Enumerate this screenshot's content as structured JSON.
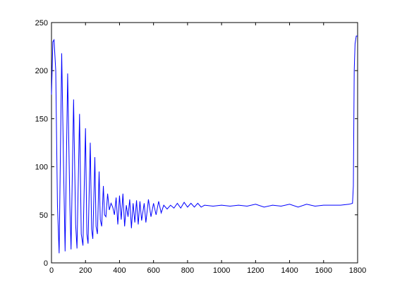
{
  "chart_data": {
    "type": "line",
    "x": [
      0,
      8,
      15,
      25,
      35,
      45,
      60,
      72,
      80,
      95,
      108,
      115,
      130,
      142,
      150,
      165,
      175,
      185,
      200,
      208,
      215,
      228,
      236,
      243,
      255,
      262,
      270,
      280,
      287,
      295,
      305,
      312,
      320,
      330,
      340,
      350,
      360,
      370,
      380,
      390,
      400,
      410,
      420,
      430,
      440,
      450,
      460,
      470,
      480,
      490,
      500,
      510,
      520,
      530,
      545,
      555,
      570,
      585,
      600,
      615,
      630,
      645,
      660,
      680,
      700,
      720,
      740,
      760,
      780,
      800,
      820,
      840,
      860,
      880,
      900,
      950,
      1000,
      1050,
      1100,
      1150,
      1200,
      1250,
      1300,
      1350,
      1400,
      1450,
      1500,
      1550,
      1600,
      1650,
      1700,
      1750,
      1770,
      1775,
      1780,
      1785,
      1792,
      1800
    ],
    "values": [
      175,
      230,
      232,
      200,
      60,
      10,
      218,
      90,
      12,
      197,
      60,
      14,
      170,
      40,
      15,
      155,
      30,
      18,
      140,
      30,
      20,
      125,
      35,
      25,
      110,
      38,
      30,
      95,
      45,
      38,
      80,
      50,
      48,
      72,
      55,
      62,
      58,
      50,
      68,
      40,
      70,
      45,
      72,
      38,
      60,
      48,
      66,
      36,
      62,
      42,
      65,
      40,
      64,
      44,
      62,
      42,
      66,
      48,
      62,
      50,
      64,
      52,
      60,
      56,
      60,
      57,
      62,
      57,
      63,
      58,
      62,
      58,
      62,
      58,
      60,
      59,
      60,
      59,
      60,
      59,
      61,
      58,
      60,
      59,
      61,
      58,
      61,
      59,
      60,
      60,
      60,
      61,
      62,
      80,
      200,
      228,
      236,
      236
    ],
    "color": "#0000ff",
    "xlim": [
      0,
      1800
    ],
    "ylim": [
      0,
      250
    ],
    "xticks": [
      0,
      200,
      400,
      600,
      800,
      1000,
      1200,
      1400,
      1600,
      1800
    ],
    "yticks": [
      0,
      50,
      100,
      150,
      200,
      250
    ],
    "grid": false
  }
}
